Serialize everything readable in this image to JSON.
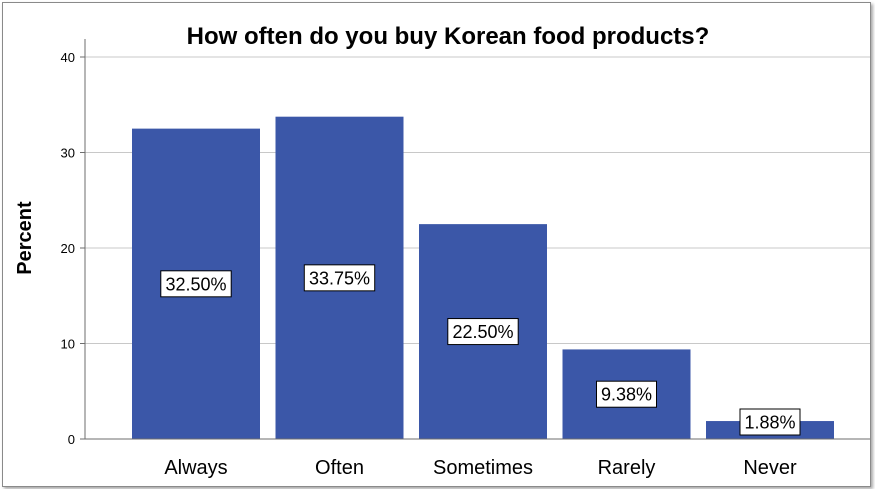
{
  "chart_data": {
    "type": "bar",
    "title": "How often do you buy Korean food products?",
    "ylabel": "Percent",
    "xlabel": "",
    "categories": [
      "Always",
      "Often",
      "Sometimes",
      "Rarely",
      "Never"
    ],
    "values": [
      32.5,
      33.75,
      22.5,
      9.38,
      1.88
    ],
    "data_labels": [
      "32.50%",
      "33.75%",
      "22.50%",
      "9.38%",
      "1.88%"
    ],
    "ylim": [
      0,
      40
    ],
    "yticks": [
      0,
      10,
      20,
      30,
      40
    ],
    "grid": true,
    "colors": {
      "bar": "#3b57a8",
      "grid": "#c8c8c8",
      "axis": "#6e6e6e"
    }
  }
}
